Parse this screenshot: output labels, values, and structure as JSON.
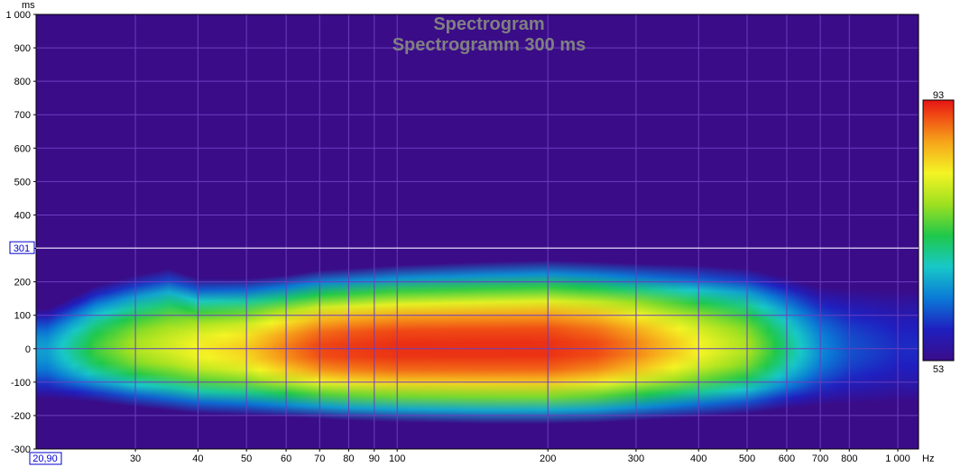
{
  "chart_data": {
    "type": "heatmap",
    "title": "Spectrogram",
    "subtitle": "Spectrogramm 300 ms",
    "x_scale": "log",
    "xlim": [
      19,
      1100
    ],
    "ylim": [
      -300,
      1000
    ],
    "x_unit": "Hz",
    "y_unit": "ms",
    "x_ticks": [
      {
        "value": 30,
        "label": "30"
      },
      {
        "value": 40,
        "label": "40"
      },
      {
        "value": 50,
        "label": "50"
      },
      {
        "value": 60,
        "label": "60"
      },
      {
        "value": 70,
        "label": "70"
      },
      {
        "value": 80,
        "label": "80"
      },
      {
        "value": 90,
        "label": "90"
      },
      {
        "value": 100,
        "label": "100"
      },
      {
        "value": 200,
        "label": "200"
      },
      {
        "value": 300,
        "label": "300"
      },
      {
        "value": 400,
        "label": "400"
      },
      {
        "value": 500,
        "label": "500"
      },
      {
        "value": 600,
        "label": "600"
      },
      {
        "value": 700,
        "label": "700"
      },
      {
        "value": 800,
        "label": "800"
      },
      {
        "value": 1000,
        "label": "1 000"
      }
    ],
    "y_ticks": [
      {
        "value": 1000,
        "label": "1 000"
      },
      {
        "value": 900,
        "label": "900"
      },
      {
        "value": 800,
        "label": "800"
      },
      {
        "value": 700,
        "label": "700"
      },
      {
        "value": 600,
        "label": "600"
      },
      {
        "value": 500,
        "label": "500"
      },
      {
        "value": 400,
        "label": "400"
      },
      {
        "value": 300,
        "label": "300"
      },
      {
        "value": 200,
        "label": "200"
      },
      {
        "value": 100,
        "label": "100"
      },
      {
        "value": 0,
        "label": "0"
      },
      {
        "value": -100,
        "label": "-100"
      },
      {
        "value": -200,
        "label": "-200"
      },
      {
        "value": -300,
        "label": "-300"
      }
    ],
    "grid": true,
    "colorbar": {
      "min": 53,
      "max": 93,
      "placement": "right"
    },
    "cursor": {
      "y": 301,
      "y_label": "301",
      "x_label": "20,90"
    },
    "envelope": {
      "freqs": [
        20,
        25,
        30,
        35,
        40,
        50,
        60,
        70,
        80,
        100,
        150,
        200,
        250,
        300,
        400,
        500,
        600,
        700,
        800,
        1000,
        1100
      ],
      "top_ms": [
        120,
        190,
        220,
        240,
        210,
        210,
        220,
        235,
        240,
        250,
        260,
        265,
        260,
        255,
        250,
        240,
        215,
        185,
        180,
        175,
        175
      ],
      "bottom_ms": [
        -150,
        -160,
        -175,
        -185,
        -195,
        -200,
        -205,
        -210,
        -215,
        -220,
        -225,
        -225,
        -222,
        -215,
        -205,
        -195,
        -180,
        -170,
        -165,
        -160,
        -160
      ],
      "peak_level": [
        64,
        72,
        76,
        78,
        80,
        82,
        86,
        89,
        90,
        91,
        91,
        91,
        89,
        86,
        80,
        76,
        69,
        63,
        60,
        58,
        58
      ]
    },
    "colors": {
      "background": "#3a0c88",
      "grid": "#6a3fbf",
      "cursor": "#ffffff",
      "axis": "#000000",
      "colormap": [
        "#3a0c88",
        "#1f1fc0",
        "#0a7ad6",
        "#18c8c8",
        "#1fc84a",
        "#9ee020",
        "#f4f424",
        "#f6a41a",
        "#f04a14",
        "#e41414"
      ]
    }
  }
}
